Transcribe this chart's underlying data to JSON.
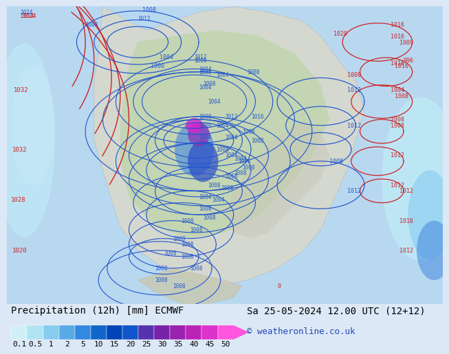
{
  "title_left": "Precipitation (12h) [mm] ECMWF",
  "title_right": "Sa 25-05-2024 12.00 UTC (12+12)",
  "credit": "© weatheronline.co.uk",
  "tick_values": [
    0.1,
    0.5,
    1,
    2,
    5,
    10,
    15,
    20,
    25,
    30,
    35,
    40,
    45,
    50
  ],
  "cbar_colors": [
    "#d0f0f8",
    "#b0e4f5",
    "#88ccf0",
    "#5aaae8",
    "#3388e0",
    "#1166cc",
    "#0044b8",
    "#1155cc",
    "#5533b0",
    "#7722a8",
    "#9922b0",
    "#bb22b8",
    "#dd33cc",
    "#ff55e0"
  ],
  "map_bg": "#c8e8f5",
  "ocean_color": "#b8d8f0",
  "land_color_green": "#b8d4a0",
  "land_color_gray": "#c8c8bc",
  "land_color_lt": "#d8d8cc",
  "bottom_bg": "#dce8f5",
  "font_size_title": 10,
  "font_size_credit": 9,
  "font_size_ticks": 8,
  "font_size_label": 7,
  "isobar_blue": "#2255cc",
  "isobar_red": "#cc2222",
  "precip_cyan_lt": "#c0ecf8",
  "precip_cyan": "#88ccf0",
  "precip_blue": "#4488e0",
  "precip_dkblue": "#2244c8",
  "precip_purple": "#8833bb",
  "precip_magenta": "#dd22cc",
  "precip_pink": "#ff44e8"
}
